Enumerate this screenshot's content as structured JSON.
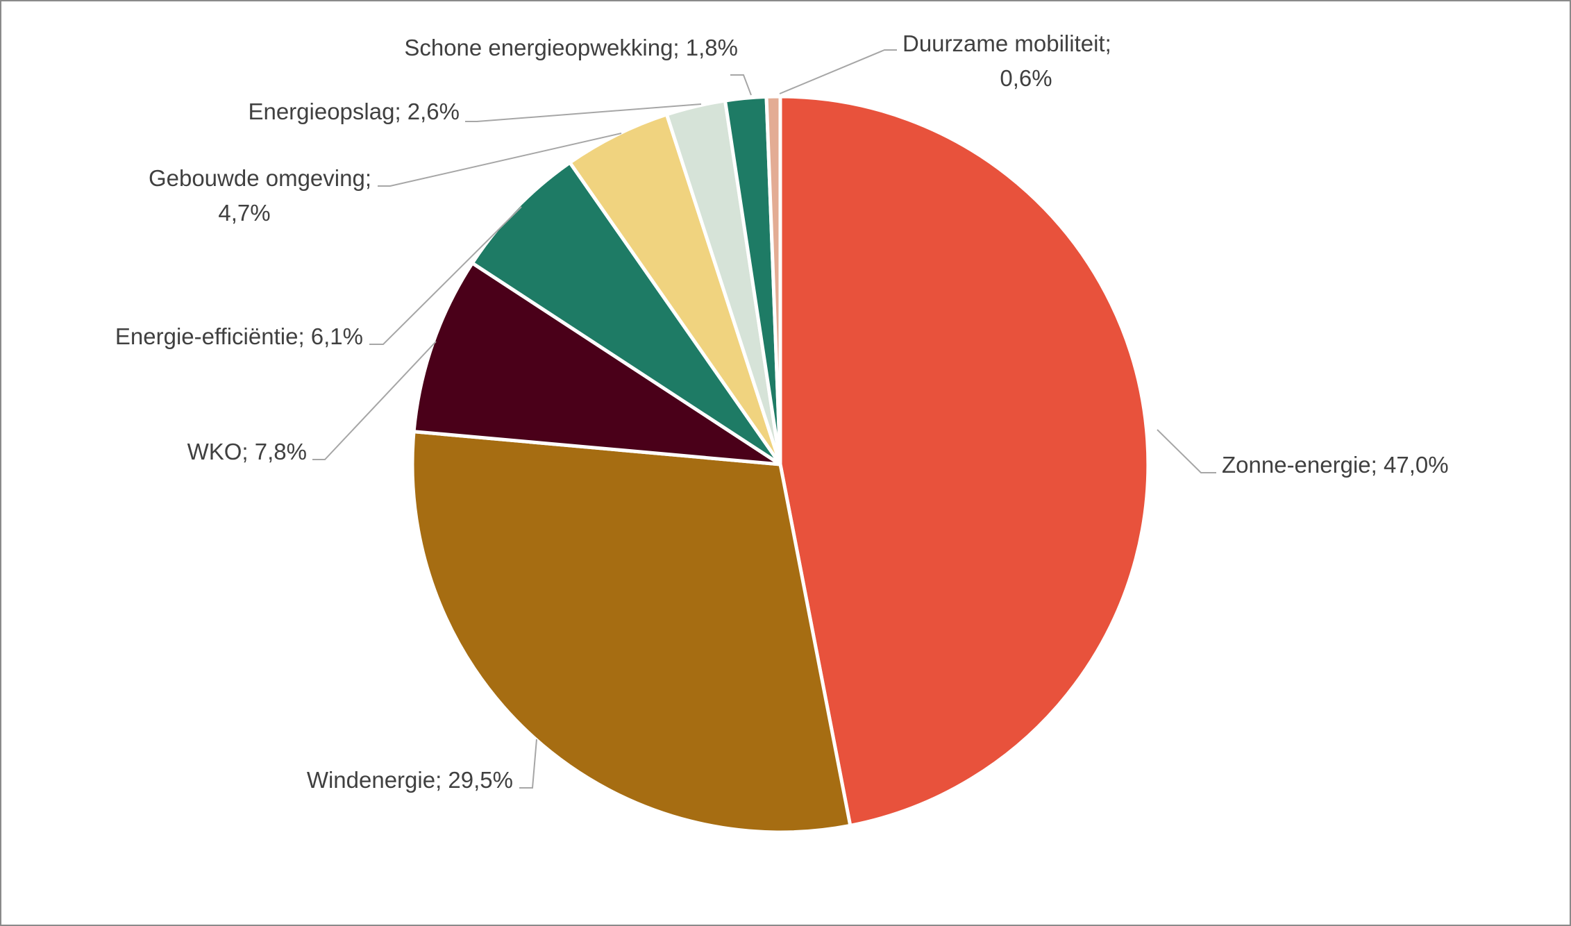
{
  "chart_data": {
    "type": "pie",
    "title": "",
    "start_angle_deg": 0,
    "direction": "clockwise",
    "slices": [
      {
        "label": "Zonne-energie",
        "value": 47.0,
        "value_text": "47,0%",
        "color": "#E8523C"
      },
      {
        "label": "Windenergie",
        "value": 29.5,
        "value_text": "29,5%",
        "color": "#A66D12"
      },
      {
        "label": "WKO",
        "value": 7.8,
        "value_text": "7,8%",
        "color": "#4A0019"
      },
      {
        "label": "Energie-efficiëntie",
        "value": 6.1,
        "value_text": "6,1%",
        "color": "#1E7B65"
      },
      {
        "label": "Gebouwde omgeving",
        "value": 4.7,
        "value_text": "4,7%",
        "color": "#F0D37F"
      },
      {
        "label": "Energieopslag",
        "value": 2.6,
        "value_text": "2,6%",
        "color": "#D6E3D8"
      },
      {
        "label": "Schone energieopwekking",
        "value": 1.8,
        "value_text": "1,8%",
        "color": "#1E7B65"
      },
      {
        "label": "Duurzame mobiliteit",
        "value": 0.6,
        "value_text": "0,6%",
        "color": "#E3AC94"
      }
    ],
    "legend": "none",
    "data_labels": "outside with leader lines, 'category; percentage'"
  }
}
